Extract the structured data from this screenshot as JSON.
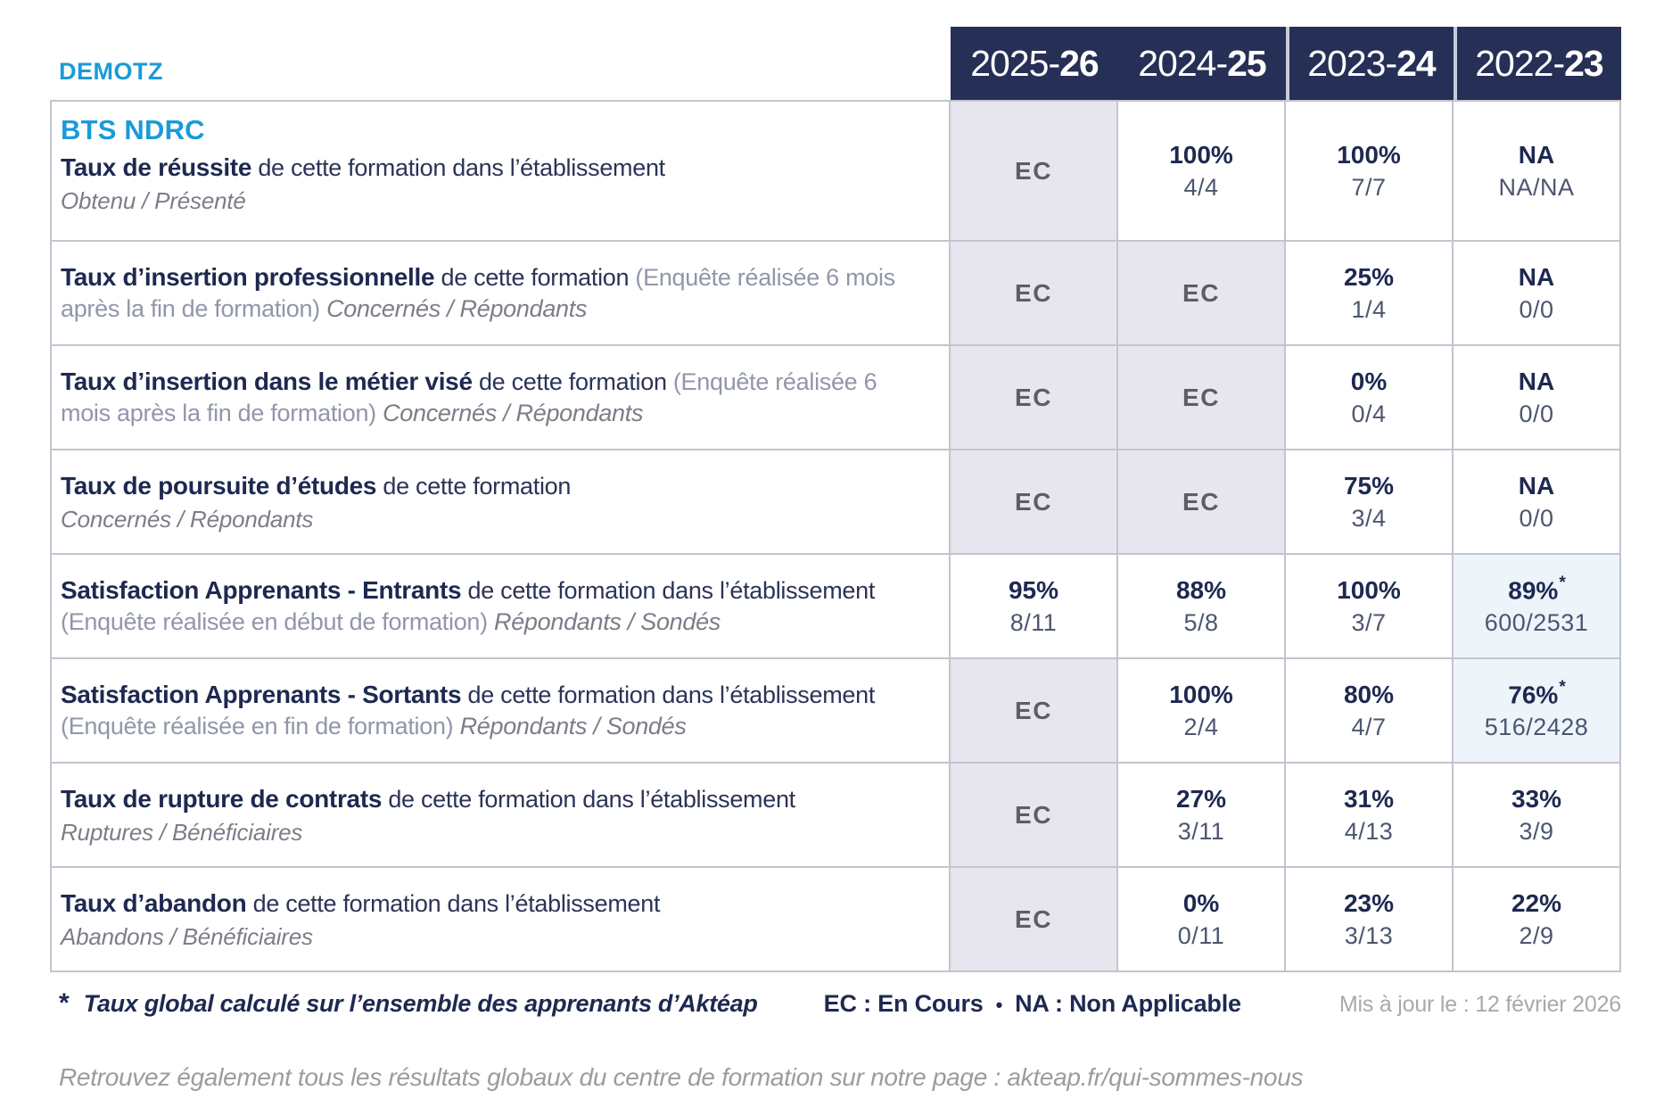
{
  "header": {
    "brand": "DEMOTZ",
    "years": [
      {
        "pre": "2025-",
        "suf": "26"
      },
      {
        "pre": "2024-",
        "suf": "25"
      },
      {
        "pre": "2023-",
        "suf": "24"
      },
      {
        "pre": "2022-",
        "suf": "23"
      }
    ]
  },
  "course": "BTS NDRC",
  "table": {
    "rows": [
      {
        "title": "Taux de réussite",
        "description": "de cette formation dans l’établissement",
        "survey_note": "",
        "sublabel": "Obtenu / Présenté",
        "sublabel_inline": false,
        "cells": [
          {
            "kind": "ec",
            "text": "EC"
          },
          {
            "kind": "value",
            "pct": "100%",
            "frac": "4/4"
          },
          {
            "kind": "value",
            "pct": "100%",
            "frac": "7/7"
          },
          {
            "kind": "value",
            "pct": "NA",
            "frac": "NA/NA"
          }
        ]
      },
      {
        "title": "Taux d’insertion professionnelle",
        "description": "de cette formation",
        "survey_note": "(Enquête réalisée 6 mois après la fin de formation)",
        "sublabel": "Concernés / Répondants",
        "sublabel_inline": true,
        "cells": [
          {
            "kind": "ec",
            "text": "EC"
          },
          {
            "kind": "ec",
            "text": "EC"
          },
          {
            "kind": "value",
            "pct": "25%",
            "frac": "1/4"
          },
          {
            "kind": "value",
            "pct": "NA",
            "frac": "0/0"
          }
        ]
      },
      {
        "title": "Taux d’insertion dans le métier visé",
        "description": "de cette formation",
        "survey_note": "(Enquête réalisée 6 mois après la fin de formation)",
        "sublabel": "Concernés / Répondants",
        "sublabel_inline": true,
        "cells": [
          {
            "kind": "ec",
            "text": "EC"
          },
          {
            "kind": "ec",
            "text": "EC"
          },
          {
            "kind": "value",
            "pct": "0%",
            "frac": "0/4"
          },
          {
            "kind": "value",
            "pct": "NA",
            "frac": "0/0"
          }
        ]
      },
      {
        "title": "Taux de poursuite d’études",
        "description": "de cette formation",
        "survey_note": "",
        "sublabel": "Concernés / Répondants",
        "sublabel_inline": false,
        "cells": [
          {
            "kind": "ec",
            "text": "EC"
          },
          {
            "kind": "ec",
            "text": "EC"
          },
          {
            "kind": "value",
            "pct": "75%",
            "frac": "3/4"
          },
          {
            "kind": "value",
            "pct": "NA",
            "frac": "0/0"
          }
        ]
      },
      {
        "title": "Satisfaction Apprenants - Entrants",
        "description": "de cette formation dans l’établissement",
        "survey_note": "(Enquête réalisée en début de formation)",
        "sublabel": "Répondants / Sondés",
        "sublabel_inline": true,
        "cells": [
          {
            "kind": "value",
            "pct": "95%",
            "frac": "8/11"
          },
          {
            "kind": "value",
            "pct": "88%",
            "frac": "5/8"
          },
          {
            "kind": "value",
            "pct": "100%",
            "frac": "3/7"
          },
          {
            "kind": "value",
            "pct": "89%",
            "frac": "600/2531",
            "star": true,
            "highlight": true
          }
        ]
      },
      {
        "title": "Satisfaction Apprenants - Sortants",
        "description": "de cette formation dans l’établissement",
        "survey_note": "(Enquête réalisée en fin de formation)",
        "sublabel": "Répondants / Sondés",
        "sublabel_inline": true,
        "cells": [
          {
            "kind": "ec",
            "text": "EC"
          },
          {
            "kind": "value",
            "pct": "100%",
            "frac": "2/4"
          },
          {
            "kind": "value",
            "pct": "80%",
            "frac": "4/7"
          },
          {
            "kind": "value",
            "pct": "76%",
            "frac": "516/2428",
            "star": true,
            "highlight": true
          }
        ]
      },
      {
        "title": "Taux de rupture de contrats",
        "description": "de cette formation dans l’établissement",
        "survey_note": "",
        "sublabel": "Ruptures / Bénéficiaires",
        "sublabel_inline": false,
        "cells": [
          {
            "kind": "ec",
            "text": "EC"
          },
          {
            "kind": "value",
            "pct": "27%",
            "frac": "3/11"
          },
          {
            "kind": "value",
            "pct": "31%",
            "frac": "4/13"
          },
          {
            "kind": "value",
            "pct": "33%",
            "frac": "3/9"
          }
        ]
      },
      {
        "title": "Taux d’abandon",
        "description": "de cette formation dans l’établissement",
        "survey_note": "",
        "sublabel": "Abandons / Bénéficiaires",
        "sublabel_inline": false,
        "cells": [
          {
            "kind": "ec",
            "text": "EC"
          },
          {
            "kind": "value",
            "pct": "0%",
            "frac": "0/11"
          },
          {
            "kind": "value",
            "pct": "23%",
            "frac": "3/13"
          },
          {
            "kind": "value",
            "pct": "22%",
            "frac": "2/9"
          }
        ]
      }
    ]
  },
  "footer": {
    "footnote_star": "*",
    "footnote": "Taux global calculé sur l’ensemble des apprenants d’Aktéap",
    "legend_ec": "EC : En Cours",
    "legend_sep": "•",
    "legend_na": "NA : Non Applicable",
    "updated": "Mis à jour le : 12 février 2026",
    "bottom_note": "Retrouvez également tous les résultats globaux du centre de formation sur notre page : akteap.fr/qui-sommes-nous"
  },
  "colors": {
    "brand_blue": "#1a9bd7",
    "navy_text": "#1e2950",
    "header_background": "#262f55",
    "ec_cell_background": "#e7e6ee",
    "highlight_cell_background": "#edf4fa",
    "border": "#c3c4ce"
  }
}
